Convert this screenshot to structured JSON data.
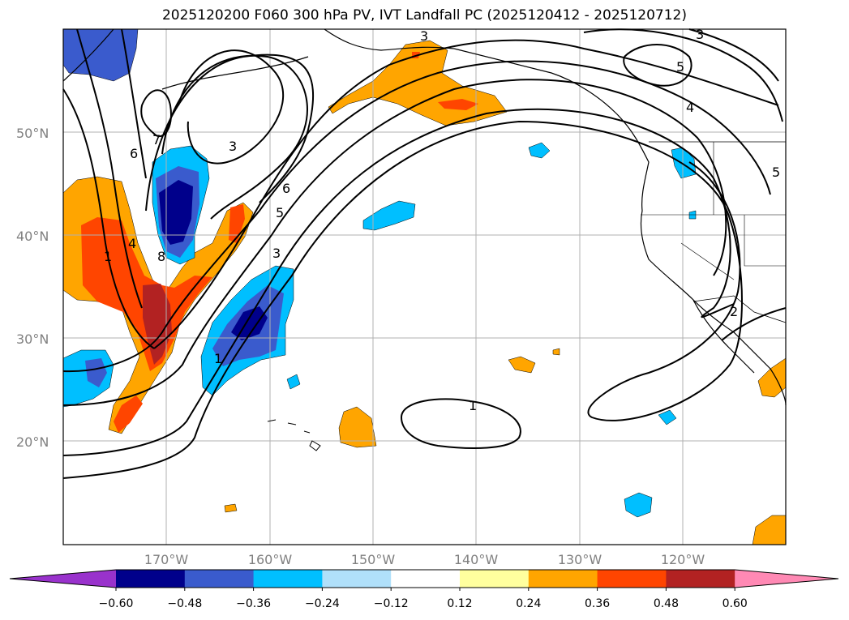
{
  "title": "2025120200 F060 300 hPa PV, IVT Landfall PC (2025120412 - 2025120712)",
  "map": {
    "lat_labels": [
      "50°N",
      "40°N",
      "30°N",
      "20°N"
    ],
    "lon_labels": [
      "170°W",
      "160°W",
      "150°W",
      "140°W",
      "130°W",
      "120°W"
    ],
    "contour_labels": [
      "3",
      "3",
      "5",
      "4",
      "5",
      "7",
      "6",
      "3",
      "6",
      "5",
      "3",
      "1",
      "1",
      "4",
      "8",
      "1",
      "2"
    ]
  },
  "colorbar": {
    "colors": [
      "#9932cc",
      "#00008b",
      "#3a5bcd",
      "#00bfff",
      "#b0e0fa",
      "#ffffff",
      "#ffff9e",
      "#ffa500",
      "#ff4500",
      "#b22222",
      "#ff89b4"
    ],
    "ticks": [
      "−0.60",
      "−0.48",
      "−0.36",
      "−0.24",
      "−0.12",
      "0.12",
      "0.24",
      "0.36",
      "0.48",
      "0.60"
    ]
  },
  "fill_colors": {
    "dark_blue": "#00008b",
    "mid_blue": "#3a5bcd",
    "cyan": "#00bfff",
    "orange": "#ffa500",
    "red_orange": "#ff4500",
    "dark_red": "#b22222"
  }
}
